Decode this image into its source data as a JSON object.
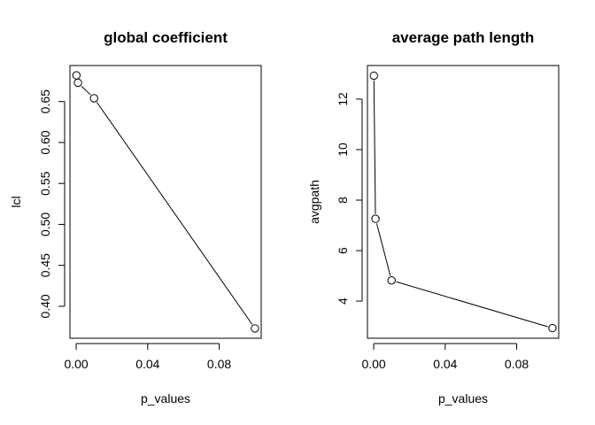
{
  "chart_data": [
    {
      "type": "line",
      "title": "global coefficient",
      "xlabel": "p_values",
      "ylabel": "lcl",
      "x": [
        0.0001,
        0.001,
        0.01,
        0.1
      ],
      "y": [
        0.682,
        0.673,
        0.654,
        0.373
      ],
      "xlim": [
        -0.0035,
        0.1035
      ],
      "ylim": [
        0.361,
        0.694
      ],
      "xticks": [
        0.0,
        0.04,
        0.08
      ],
      "xtick_labels": [
        "0.00",
        "0.04",
        "0.08"
      ],
      "yticks": [
        0.4,
        0.45,
        0.5,
        0.55,
        0.6,
        0.65
      ],
      "ytick_labels": [
        "0.40",
        "0.45",
        "0.50",
        "0.55",
        "0.60",
        "0.65"
      ],
      "grid": false,
      "markers": "open-circle"
    },
    {
      "type": "line",
      "title": "average path length",
      "xlabel": "p_values",
      "ylabel": "avgpath",
      "x": [
        0.0001,
        0.001,
        0.01,
        0.1
      ],
      "y": [
        12.93,
        7.26,
        4.82,
        2.93
      ],
      "xlim": [
        -0.0035,
        0.1035
      ],
      "ylim": [
        2.53,
        13.33
      ],
      "xticks": [
        0.0,
        0.04,
        0.08
      ],
      "xtick_labels": [
        "0.00",
        "0.04",
        "0.08"
      ],
      "yticks": [
        4,
        6,
        8,
        10,
        12
      ],
      "ytick_labels": [
        "4",
        "6",
        "8",
        "10",
        "12"
      ],
      "grid": false,
      "markers": "open-circle"
    }
  ]
}
